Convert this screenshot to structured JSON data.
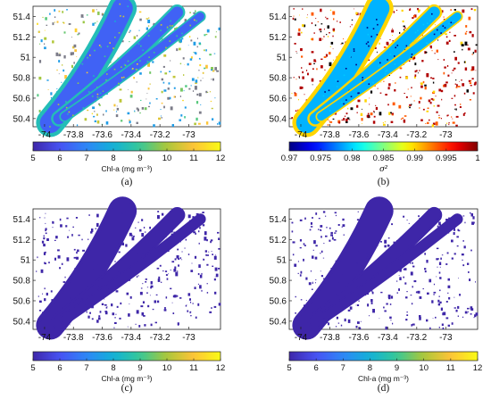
{
  "chart_data": [
    {
      "type": "heatmap",
      "panel_label": "(a)",
      "x_ticks": [
        -74,
        -73.8,
        -73.6,
        -73.4,
        -73.2,
        -73
      ],
      "y_ticks": [
        51.4,
        51.2,
        51,
        50.8,
        50.6,
        50.4
      ],
      "xlim": [
        -74.08,
        -72.78
      ],
      "ylim": [
        50.32,
        51.5
      ],
      "colorbar": {
        "range": [
          5,
          12
        ],
        "ticks": [
          5,
          6,
          7,
          8,
          9,
          10,
          11,
          12
        ],
        "label": "Chl-a (mg m⁻³)",
        "colormap": "parula"
      },
      "values": {
        "lake": 6.3,
        "edge": 8.5,
        "scatter": 9.5
      }
    },
    {
      "type": "heatmap",
      "panel_label": "(b)",
      "x_ticks": [
        -74,
        -73.8,
        -73.6,
        -73.4,
        -73.2,
        -73
      ],
      "y_ticks": [
        51.4,
        51.2,
        51,
        50.8,
        50.6,
        50.4
      ],
      "xlim": [
        -74.08,
        -72.78
      ],
      "ylim": [
        50.32,
        51.5
      ],
      "colorbar": {
        "range": [
          0.97,
          1
        ],
        "ticks": [
          0.97,
          0.975,
          0.98,
          0.985,
          0.99,
          0.995,
          1
        ],
        "label": "σ²",
        "colormap": "jet"
      },
      "values": {
        "lake": 0.979,
        "edge": 0.99,
        "scatter": 0.998
      }
    },
    {
      "type": "heatmap",
      "panel_label": "(c)",
      "x_ticks": [
        -74,
        -73.8,
        -73.6,
        -73.4,
        -73.2,
        -73
      ],
      "y_ticks": [
        51.4,
        51.2,
        51,
        50.8,
        50.6,
        50.4
      ],
      "xlim": [
        -74.08,
        -72.78
      ],
      "ylim": [
        50.32,
        51.5
      ],
      "colorbar": {
        "range": [
          5,
          12
        ],
        "ticks": [
          5,
          6,
          7,
          8,
          9,
          10,
          11,
          12
        ],
        "label": "Chl-a (mg m⁻³)",
        "colormap": "parula"
      },
      "values": {
        "lake": 5.0,
        "edge": 5.0,
        "scatter": 5.0
      }
    },
    {
      "type": "heatmap",
      "panel_label": "(d)",
      "x_ticks": [
        -74,
        -73.8,
        -73.6,
        -73.4,
        -73.2,
        -73
      ],
      "y_ticks": [
        51.4,
        51.2,
        51,
        50.8,
        50.6,
        50.4
      ],
      "xlim": [
        -74.08,
        -72.78
      ],
      "ylim": [
        50.32,
        51.5
      ],
      "colorbar": {
        "range": [
          5,
          12
        ],
        "ticks": [
          5,
          6,
          7,
          8,
          9,
          10,
          11,
          12
        ],
        "label": "Chl-a (mg m⁻³)",
        "colormap": "parula"
      },
      "values": {
        "lake": 5.0,
        "edge": 5.0,
        "scatter": 5.0
      }
    }
  ]
}
